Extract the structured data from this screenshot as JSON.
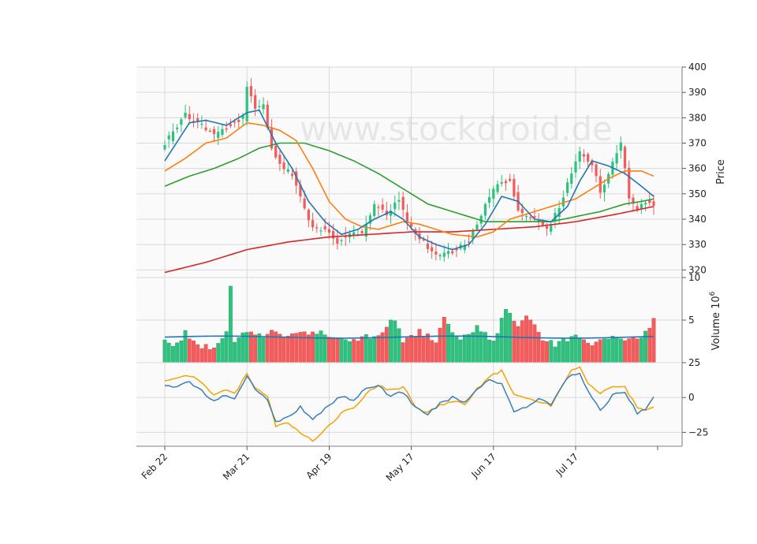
{
  "chart_data": {
    "type": "candlestick",
    "watermark": "www.stockdroid.de",
    "colors": {
      "up": "#2dc27e",
      "down": "#f45c5c",
      "ma_short": "#1f77b4",
      "ma_mid": "#ff7f0e",
      "ma_long": "#2ca02c",
      "ma_very_long": "#d62728",
      "volume_avg": "#1f77b4",
      "osc_a": "#3b7fb5",
      "osc_b": "#f5a300",
      "grid": "#d9d9d9",
      "panel_bg": "#fafafa"
    },
    "x_ticks": [
      "Feb 22",
      "Mar 21",
      "Apr 19",
      "May 17",
      "Jun 17",
      "Jul 17"
    ],
    "x_tick_index": [
      0,
      20,
      40,
      60,
      80,
      100
    ],
    "n_bars": 120,
    "price_panel": {
      "ylabel": "Price",
      "ylim": [
        317,
        400
      ],
      "yticks": [
        320,
        330,
        340,
        350,
        360,
        370,
        380,
        390,
        400
      ],
      "close_anchors": [
        [
          0,
          370
        ],
        [
          5,
          381
        ],
        [
          9,
          377
        ],
        [
          12,
          373
        ],
        [
          16,
          377
        ],
        [
          19,
          380
        ],
        [
          20,
          393
        ],
        [
          22,
          384
        ],
        [
          24,
          385
        ],
        [
          26,
          368
        ],
        [
          28,
          361
        ],
        [
          31,
          358
        ],
        [
          33,
          349
        ],
        [
          36,
          336
        ],
        [
          39,
          336
        ],
        [
          42,
          331
        ],
        [
          45,
          335
        ],
        [
          48,
          334
        ],
        [
          51,
          346
        ],
        [
          54,
          342
        ],
        [
          57,
          348
        ],
        [
          59,
          338
        ],
        [
          62,
          333
        ],
        [
          65,
          327
        ],
        [
          68,
          326
        ],
        [
          71,
          328
        ],
        [
          74,
          331
        ],
        [
          77,
          342
        ],
        [
          80,
          352
        ],
        [
          84,
          356
        ],
        [
          86,
          343
        ],
        [
          89,
          341
        ],
        [
          93,
          336
        ],
        [
          96,
          345
        ],
        [
          99,
          358
        ],
        [
          101,
          366
        ],
        [
          104,
          362
        ],
        [
          106,
          350
        ],
        [
          109,
          362
        ],
        [
          111,
          370
        ],
        [
          113,
          349
        ],
        [
          115,
          343
        ],
        [
          117,
          347
        ],
        [
          119,
          345
        ]
      ],
      "ma_short_anchors": [
        [
          0,
          363
        ],
        [
          6,
          378
        ],
        [
          10,
          379
        ],
        [
          15,
          377
        ],
        [
          20,
          382
        ],
        [
          23,
          383
        ],
        [
          27,
          370
        ],
        [
          31,
          360
        ],
        [
          35,
          347
        ],
        [
          39,
          339
        ],
        [
          43,
          334
        ],
        [
          47,
          336
        ],
        [
          51,
          340
        ],
        [
          55,
          343
        ],
        [
          58,
          340
        ],
        [
          62,
          333
        ],
        [
          66,
          330
        ],
        [
          70,
          328
        ],
        [
          74,
          330
        ],
        [
          78,
          338
        ],
        [
          82,
          349
        ],
        [
          86,
          347
        ],
        [
          90,
          340
        ],
        [
          94,
          339
        ],
        [
          98,
          345
        ],
        [
          101,
          355
        ],
        [
          104,
          363
        ],
        [
          108,
          361
        ],
        [
          112,
          358
        ],
        [
          116,
          353
        ],
        [
          119,
          349
        ]
      ],
      "ma_mid_anchors": [
        [
          0,
          359
        ],
        [
          5,
          364
        ],
        [
          10,
          370
        ],
        [
          15,
          372
        ],
        [
          20,
          378
        ],
        [
          24,
          377
        ],
        [
          28,
          375
        ],
        [
          32,
          371
        ],
        [
          36,
          360
        ],
        [
          40,
          347
        ],
        [
          44,
          340
        ],
        [
          48,
          337
        ],
        [
          52,
          336
        ],
        [
          58,
          339
        ],
        [
          62,
          338
        ],
        [
          66,
          336
        ],
        [
          70,
          334
        ],
        [
          76,
          333
        ],
        [
          80,
          335
        ],
        [
          84,
          340
        ],
        [
          88,
          342
        ],
        [
          92,
          344
        ],
        [
          96,
          346
        ],
        [
          100,
          348
        ],
        [
          104,
          352
        ],
        [
          108,
          356
        ],
        [
          112,
          359
        ],
        [
          116,
          359
        ],
        [
          119,
          357
        ]
      ],
      "ma_long_anchors": [
        [
          0,
          353
        ],
        [
          6,
          357
        ],
        [
          12,
          360
        ],
        [
          18,
          364
        ],
        [
          23,
          368
        ],
        [
          28,
          370
        ],
        [
          34,
          370
        ],
        [
          40,
          367
        ],
        [
          46,
          363
        ],
        [
          52,
          358
        ],
        [
          58,
          352
        ],
        [
          64,
          346
        ],
        [
          70,
          343
        ],
        [
          74,
          341
        ],
        [
          78,
          339
        ],
        [
          82,
          339
        ],
        [
          88,
          339
        ],
        [
          94,
          339
        ],
        [
          100,
          341
        ],
        [
          106,
          343
        ],
        [
          112,
          346
        ],
        [
          116,
          347
        ],
        [
          119,
          348
        ]
      ],
      "ma_very_long_anchors": [
        [
          0,
          319
        ],
        [
          10,
          323
        ],
        [
          20,
          328
        ],
        [
          30,
          331
        ],
        [
          40,
          333
        ],
        [
          50,
          334
        ],
        [
          60,
          335
        ],
        [
          70,
          335
        ],
        [
          80,
          336
        ],
        [
          90,
          337
        ],
        [
          100,
          339
        ],
        [
          110,
          342
        ],
        [
          119,
          345
        ]
      ]
    },
    "volume_panel": {
      "ylabel": "Volume  10",
      "ylabel_exponent": "6",
      "ylim": [
        0,
        10
      ],
      "yticks": [
        5,
        10
      ],
      "avg_level": 3.0,
      "volume_anchors": [
        [
          0,
          2.8
        ],
        [
          3,
          2.0
        ],
        [
          5,
          3.8
        ],
        [
          8,
          2.0
        ],
        [
          12,
          1.9
        ],
        [
          15,
          3.3
        ],
        [
          16,
          9.0
        ],
        [
          17,
          2.4
        ],
        [
          20,
          3.6
        ],
        [
          24,
          3.0
        ],
        [
          26,
          3.8
        ],
        [
          29,
          3.4
        ],
        [
          32,
          3.7
        ],
        [
          36,
          3.5
        ],
        [
          40,
          3.2
        ],
        [
          44,
          2.6
        ],
        [
          48,
          3.0
        ],
        [
          52,
          3.0
        ],
        [
          56,
          5.3
        ],
        [
          58,
          2.5
        ],
        [
          62,
          3.6
        ],
        [
          66,
          2.4
        ],
        [
          68,
          5.0
        ],
        [
          72,
          2.6
        ],
        [
          76,
          4.0
        ],
        [
          80,
          2.6
        ],
        [
          83,
          6.0
        ],
        [
          86,
          4.3
        ],
        [
          88,
          5.9
        ],
        [
          92,
          2.8
        ],
        [
          95,
          2.1
        ],
        [
          100,
          3.2
        ],
        [
          104,
          2.3
        ],
        [
          108,
          3.0
        ],
        [
          112,
          2.8
        ],
        [
          116,
          2.8
        ],
        [
          119,
          5.2
        ]
      ]
    },
    "oscillator_panel": {
      "ylim": [
        -35,
        25
      ],
      "yticks": [
        25,
        0,
        -25
      ],
      "ytick_labels": [
        "25",
        "0",
        "−25"
      ],
      "line_a_anchors": [
        [
          0,
          9
        ],
        [
          3,
          8
        ],
        [
          6,
          11
        ],
        [
          9,
          5
        ],
        [
          12,
          -3
        ],
        [
          15,
          2
        ],
        [
          17,
          -1
        ],
        [
          20,
          16
        ],
        [
          22,
          5
        ],
        [
          25,
          -2
        ],
        [
          27,
          -18
        ],
        [
          30,
          -14
        ],
        [
          33,
          -7
        ],
        [
          36,
          -16
        ],
        [
          40,
          -6
        ],
        [
          43,
          1
        ],
        [
          46,
          -2
        ],
        [
          49,
          7
        ],
        [
          52,
          8
        ],
        [
          55,
          1
        ],
        [
          58,
          4
        ],
        [
          61,
          -7
        ],
        [
          64,
          -12
        ],
        [
          67,
          -4
        ],
        [
          70,
          0
        ],
        [
          73,
          -4
        ],
        [
          76,
          6
        ],
        [
          79,
          13
        ],
        [
          82,
          10
        ],
        [
          85,
          -10
        ],
        [
          88,
          -7
        ],
        [
          91,
          -1
        ],
        [
          94,
          -5
        ],
        [
          97,
          10
        ],
        [
          99,
          17
        ],
        [
          101,
          17
        ],
        [
          103,
          5
        ],
        [
          106,
          -10
        ],
        [
          109,
          2
        ],
        [
          112,
          3
        ],
        [
          115,
          -11
        ],
        [
          117,
          -9
        ],
        [
          119,
          0
        ]
      ],
      "line_b_anchors": [
        [
          0,
          12
        ],
        [
          3,
          14
        ],
        [
          6,
          16
        ],
        [
          9,
          10
        ],
        [
          12,
          2
        ],
        [
          15,
          5
        ],
        [
          17,
          3
        ],
        [
          20,
          17
        ],
        [
          22,
          7
        ],
        [
          25,
          1
        ],
        [
          27,
          -20
        ],
        [
          30,
          -18
        ],
        [
          33,
          -25
        ],
        [
          36,
          -31
        ],
        [
          40,
          -20
        ],
        [
          43,
          -11
        ],
        [
          46,
          -8
        ],
        [
          49,
          3
        ],
        [
          52,
          9
        ],
        [
          55,
          5
        ],
        [
          58,
          8
        ],
        [
          61,
          -6
        ],
        [
          64,
          -11
        ],
        [
          67,
          -6
        ],
        [
          70,
          -3
        ],
        [
          73,
          -5
        ],
        [
          76,
          6
        ],
        [
          79,
          15
        ],
        [
          82,
          19
        ],
        [
          85,
          3
        ],
        [
          88,
          -1
        ],
        [
          91,
          -3
        ],
        [
          94,
          -6
        ],
        [
          97,
          9
        ],
        [
          99,
          20
        ],
        [
          101,
          22
        ],
        [
          103,
          10
        ],
        [
          106,
          3
        ],
        [
          109,
          7
        ],
        [
          112,
          8
        ],
        [
          115,
          -8
        ],
        [
          117,
          -10
        ],
        [
          119,
          -6
        ]
      ]
    }
  }
}
